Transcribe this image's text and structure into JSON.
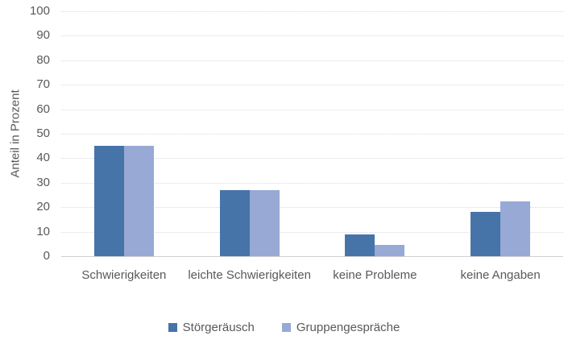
{
  "chart_data": {
    "type": "bar",
    "categories": [
      "Schwierigkeiten",
      "leichte Schwierigkeiten",
      "keine Probleme",
      "keine Angaben"
    ],
    "series": [
      {
        "name": "Störgeräusch",
        "color": "#4674A9",
        "values": [
          45,
          27,
          9,
          18
        ]
      },
      {
        "name": "Gruppengespräche",
        "color": "#97A9D4",
        "values": [
          45,
          27,
          4.5,
          22.5
        ]
      }
    ],
    "xlabel": "",
    "ylabel": "Anteil in Prozent",
    "ylim": [
      0,
      100
    ],
    "yticks": [
      0,
      10,
      20,
      30,
      40,
      50,
      60,
      70,
      80,
      90,
      100
    ],
    "grid": true,
    "legend_position": "bottom"
  },
  "colors": {
    "text": "#595959",
    "gridline": "#d9d9d9",
    "axis": "#cfcfcf",
    "background": "#ffffff"
  }
}
